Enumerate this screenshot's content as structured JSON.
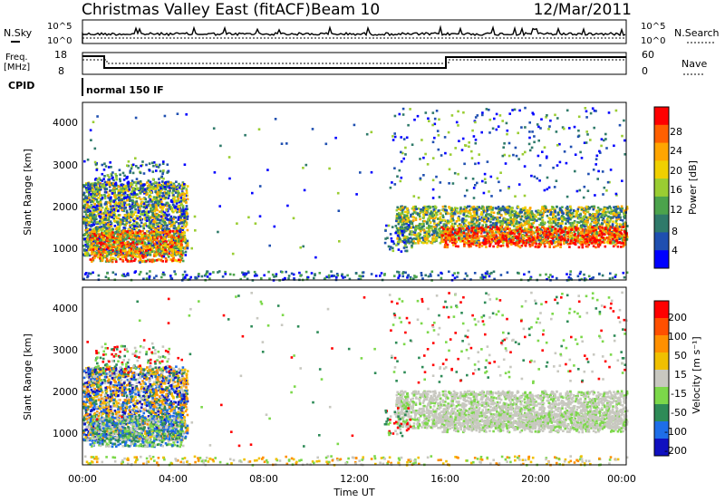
{
  "header": {
    "title": "Christmas Valley East (fitACF)",
    "beam": "Beam 10",
    "date": "12/Mar/2011"
  },
  "top_panels": {
    "nsky_label": "N.Sky",
    "nsky_ticks": [
      "10^5",
      "10^0"
    ],
    "nsearch_label": "N.Search",
    "nsearch_ticks": [
      "10^5",
      "10^0"
    ],
    "freq_label": "Freq.",
    "freq_unit": "[MHz]",
    "freq_ticks": [
      "18",
      "8"
    ],
    "nave_label": "Nave",
    "nave_ticks": [
      "60",
      "0"
    ],
    "cpid_label": "CPID",
    "cpid_value": "normal 150 IF"
  },
  "chart_data": [
    {
      "type": "heatmap",
      "name": "power",
      "ylabel": "Slant Range [km]",
      "yticks": [
        "4000",
        "3000",
        "2000",
        "1000"
      ],
      "ylim": [
        180,
        4500
      ],
      "colorbar_label": "Power [dB]",
      "colorbar_ticks": [
        "28",
        "24",
        "20",
        "16",
        "12",
        "8",
        "4"
      ],
      "colorbar_colors": [
        "#0000ff",
        "#1f4fb0",
        "#2f7a6a",
        "#4ca34c",
        "#9acd32",
        "#f0d000",
        "#ffa500",
        "#ff6000",
        "#ff0000"
      ]
    },
    {
      "type": "heatmap",
      "name": "velocity",
      "ylabel": "Slant Range [km]",
      "yticks": [
        "4000",
        "3000",
        "2000",
        "1000"
      ],
      "ylim": [
        180,
        4500
      ],
      "colorbar_label": "Velocity [m s⁻¹]",
      "colorbar_ticks": [
        "200",
        "100",
        "50",
        "15",
        "-15",
        "-50",
        "-100",
        "-200"
      ],
      "colorbar_colors": [
        "#1010c0",
        "#1e6ee8",
        "#2e8b57",
        "#7cd84a",
        "#c8c8c0",
        "#f0c000",
        "#ff9000",
        "#ff5000",
        "#ff0000"
      ]
    }
  ],
  "xaxis": {
    "label": "Time UT",
    "ticks": [
      "00:00",
      "04:00",
      "08:00",
      "12:00",
      "16:00",
      "20:00",
      "00:00"
    ]
  }
}
